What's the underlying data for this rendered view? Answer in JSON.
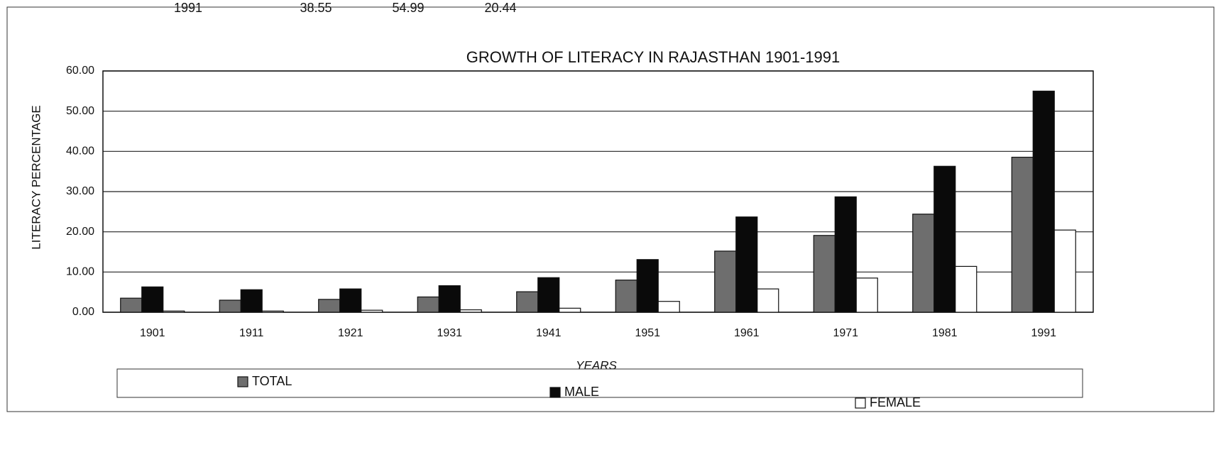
{
  "table_fragment": {
    "row": [
      "1991",
      "38.55",
      "54.99",
      "20.44"
    ]
  },
  "chart_data": {
    "type": "bar",
    "title": "GROWTH OF LITERACY IN RAJASTHAN 1901-1991",
    "x_label": "YEARS",
    "y_label": "LITERACY PERCENTAGE",
    "categories": [
      "1901",
      "1911",
      "1921",
      "1931",
      "1941",
      "1951",
      "1961",
      "1971",
      "1981",
      "1991"
    ],
    "series": [
      {
        "name": "TOTAL",
        "color": "#6e6e6e",
        "values": [
          3.5,
          3.0,
          3.2,
          3.8,
          5.1,
          8.0,
          15.2,
          19.1,
          24.4,
          38.55
        ]
      },
      {
        "name": "MALE",
        "color": "#0a0a0a",
        "values": [
          6.3,
          5.6,
          5.8,
          6.6,
          8.6,
          13.1,
          23.7,
          28.7,
          36.3,
          54.99
        ]
      },
      {
        "name": "FEMALE",
        "color": "#ffffff",
        "values": [
          0.3,
          0.3,
          0.5,
          0.6,
          1.0,
          2.7,
          5.8,
          8.5,
          11.4,
          20.44
        ]
      }
    ],
    "ylim": [
      0,
      60
    ],
    "yticks": [
      {
        "value": 0,
        "label": "0.00"
      },
      {
        "value": 10,
        "label": "10.00"
      },
      {
        "value": 20,
        "label": "20.00"
      },
      {
        "value": 30,
        "label": "30.00"
      },
      {
        "value": 40,
        "label": "40.00"
      },
      {
        "value": 50,
        "label": "50.00"
      },
      {
        "value": 60,
        "label": "60.00"
      }
    ],
    "grid": true,
    "legend": "bottom"
  }
}
